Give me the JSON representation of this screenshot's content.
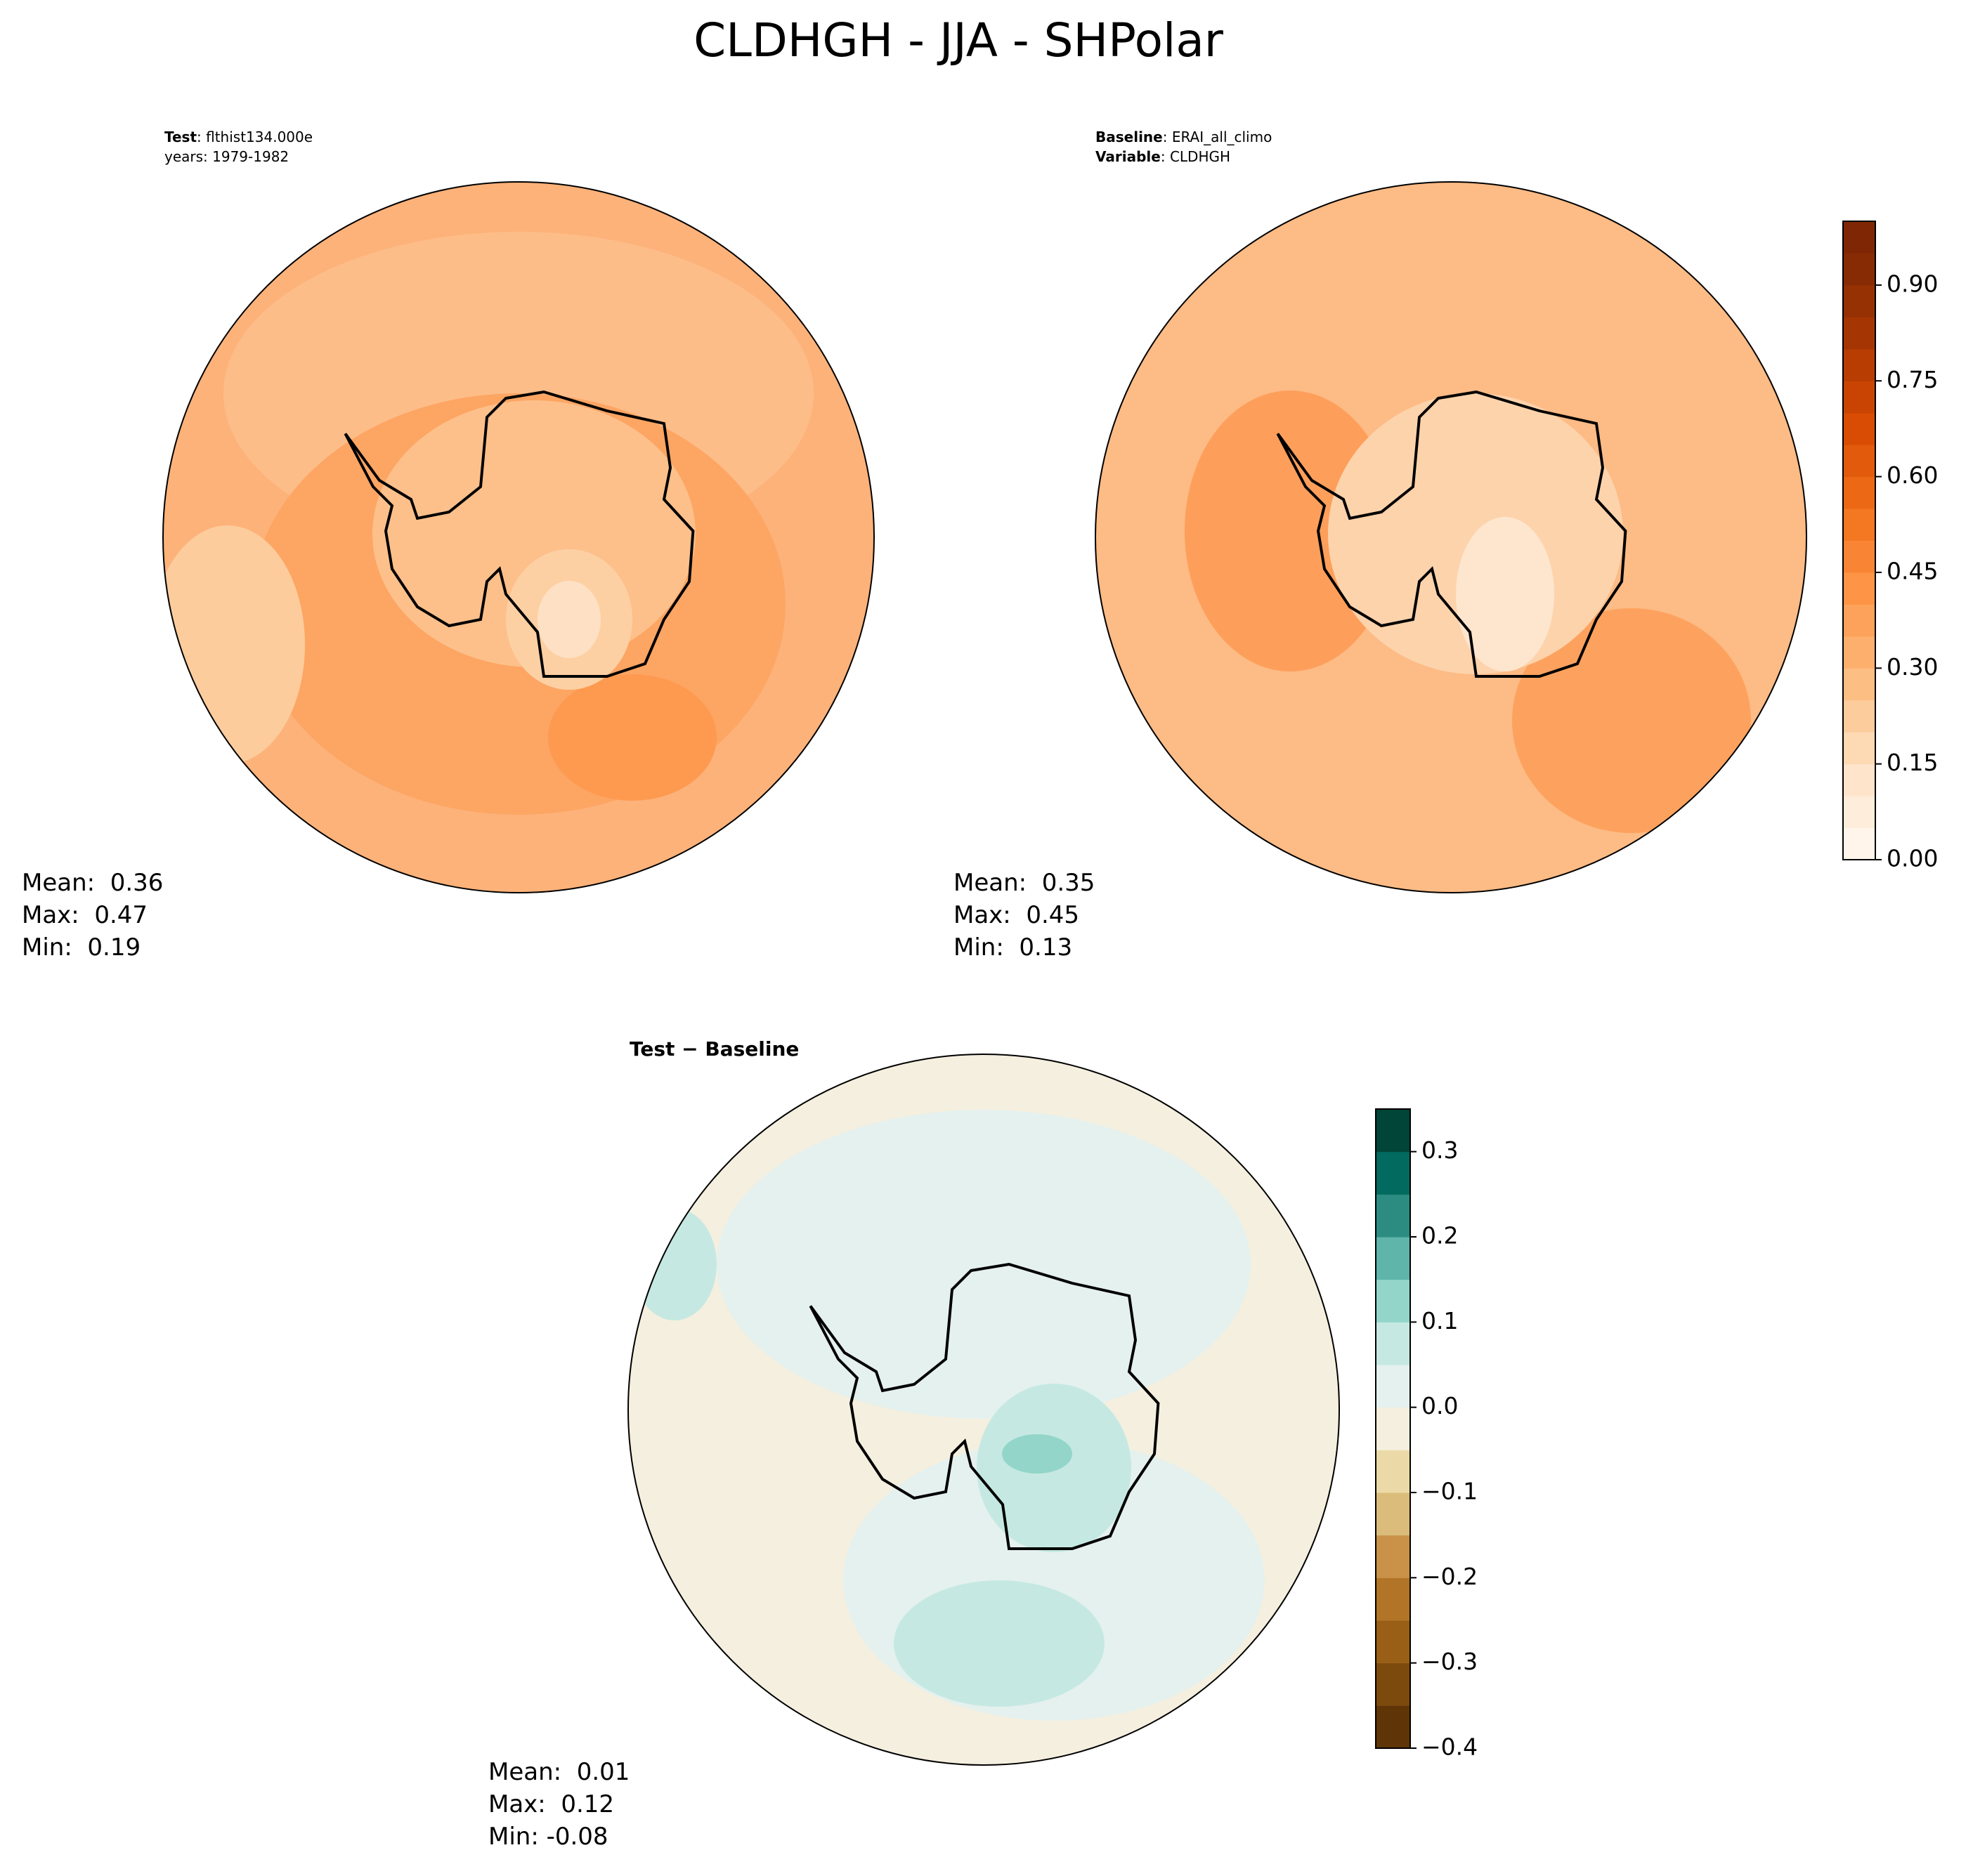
{
  "title": "CLDHGH - JJA - SHPolar",
  "panels": [
    {
      "header": [
        {
          "bold": "Test",
          "rest": ": flthist134.000e"
        },
        {
          "rest": "years: 1979-1982"
        }
      ],
      "stats": [
        "Mean:  0.36",
        "Max:  0.47",
        "Min:  0.19"
      ]
    },
    {
      "header": [
        {
          "bold": "Baseline",
          "rest": ": ERAI_all_climo"
        },
        {
          "bold": "Variable",
          "rest": ": CLDHGH"
        }
      ],
      "stats": [
        "Mean:  0.35",
        "Max:  0.45",
        "Min:  0.13"
      ]
    },
    {
      "header": [
        {
          "bold": "Test − Baseline"
        }
      ],
      "stats": [
        "Mean:  0.01",
        "Max:  0.12",
        "Min: -0.08"
      ]
    }
  ],
  "colorbars": [
    {
      "ylim": [
        0,
        1
      ],
      "yticks": [
        {
          "value": 0,
          "label": "0.00"
        },
        {
          "value": 0.15,
          "label": "0.15"
        },
        {
          "value": 0.3,
          "label": "0.30"
        },
        {
          "value": 0.45,
          "label": "0.45"
        },
        {
          "value": 0.6,
          "label": "0.60"
        },
        {
          "value": 0.75,
          "label": "0.75"
        },
        {
          "value": 0.9,
          "label": "0.90"
        }
      ],
      "colors": [
        "#fff5eb",
        "#feedda",
        "#fee4ca",
        "#fdd9b4",
        "#fdcc9c",
        "#fdbe84",
        "#fdb06e",
        "#fda25a",
        "#fd9446",
        "#f98534",
        "#f47722",
        "#ec6814",
        "#e25a0b",
        "#d84c03",
        "#c94402",
        "#b73d02",
        "#a53603",
        "#953103",
        "#872b04",
        "#7f2704"
      ]
    },
    {
      "ylim": [
        -0.4,
        0.35
      ],
      "yticks": [
        {
          "value": -0.4,
          "label": "−0.4"
        },
        {
          "value": -0.3,
          "label": "−0.3"
        },
        {
          "value": -0.2,
          "label": "−0.2"
        },
        {
          "value": -0.1,
          "label": "−0.1"
        },
        {
          "value": 0,
          "label": "0.0"
        },
        0.1,
        0.2,
        0.3
      ],
      "colors": [
        "#5f3508",
        "#7d4a0e",
        "#9a5f17",
        "#b27426",
        "#c99248",
        "#dbbc7a",
        "#ebdaa8",
        "#f5efdf",
        "#e5f1ee",
        "#c5e9e2",
        "#93d5c9",
        "#5fb5aa",
        "#2c8c82",
        "#036a5f",
        "#004537"
      ]
    }
  ]
}
